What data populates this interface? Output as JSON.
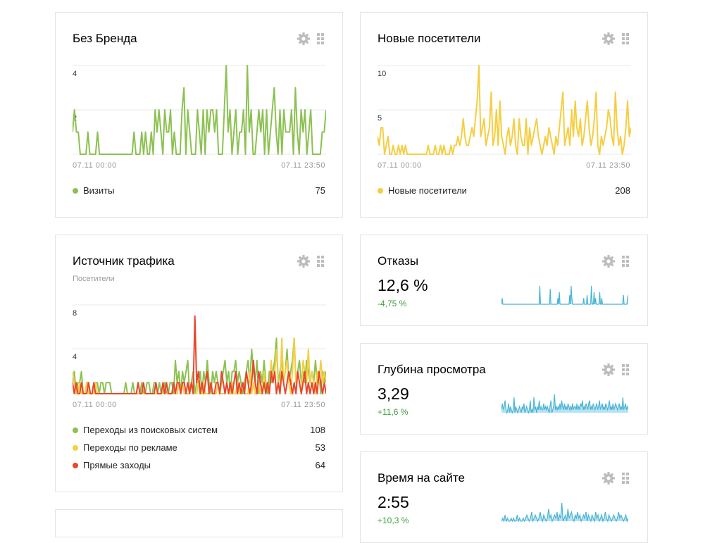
{
  "cards": {
    "brand": {
      "title": "Без Бренда",
      "y_ticks": [
        "4",
        "2"
      ],
      "time_start": "07.11 00:00",
      "time_end": "07.11 23:50",
      "legend": [
        {
          "label": "Визиты",
          "value": "75",
          "color": "#8cc152"
        }
      ],
      "series_color": "#8cc152",
      "series": [
        1,
        2,
        1,
        1,
        0,
        0,
        0,
        0,
        1,
        0,
        0,
        0,
        0,
        1,
        0,
        0,
        0,
        0,
        0,
        0,
        0,
        0,
        0,
        0,
        0,
        0,
        0,
        0,
        0,
        0,
        0,
        0,
        1,
        0,
        0,
        0,
        1,
        0,
        1,
        0,
        0,
        1,
        0,
        2,
        1,
        2,
        1,
        0,
        2,
        1,
        1,
        2,
        0,
        1,
        0,
        0,
        0,
        2,
        3,
        0,
        2,
        1,
        0,
        0,
        0,
        2,
        1,
        0,
        2,
        0,
        2,
        1,
        2,
        2,
        1,
        2,
        0,
        0,
        0,
        2,
        4,
        1,
        2,
        0,
        1,
        2,
        0,
        1,
        1,
        2,
        0,
        4,
        1,
        2,
        0,
        0,
        1,
        2,
        1,
        2,
        0,
        2,
        0,
        1,
        2,
        3,
        1,
        0,
        2,
        0,
        2,
        1,
        1,
        1,
        2,
        0,
        3,
        1,
        0,
        2,
        1,
        2,
        0,
        1,
        2,
        0,
        0,
        0,
        0,
        0,
        1,
        1,
        2
      ]
    },
    "new_visitors": {
      "title": "Новые посетители",
      "y_ticks": [
        "10",
        "5"
      ],
      "time_start": "07.11 00:00",
      "time_end": "07.11 23:50",
      "legend": [
        {
          "label": "Новые посетители",
          "value": "208",
          "color": "#f5ce42"
        }
      ],
      "series_color": "#f5ce42",
      "series": [
        2,
        1,
        3,
        3,
        0,
        1,
        2,
        0,
        0,
        1,
        0,
        0,
        1,
        0,
        1,
        0,
        1,
        0,
        0,
        0,
        0,
        0,
        0,
        0,
        0,
        0,
        0,
        0,
        0,
        1,
        0,
        0,
        0,
        1,
        0,
        0,
        1,
        0,
        1,
        0,
        0,
        0,
        1,
        0,
        1,
        1,
        2,
        1,
        2,
        4,
        2,
        1,
        1,
        2,
        3,
        2,
        4,
        6,
        10,
        2,
        3,
        4,
        1,
        2,
        3,
        7,
        1,
        2,
        5,
        1,
        6,
        2,
        1,
        0,
        2,
        3,
        1,
        2,
        4,
        1,
        0,
        4,
        2,
        1,
        1,
        4,
        0,
        3,
        1,
        2,
        3,
        4,
        2,
        1,
        0,
        1,
        2,
        1,
        3,
        2,
        1,
        0,
        2,
        1,
        3,
        5,
        7,
        1,
        2,
        3,
        1,
        5,
        2,
        6,
        3,
        2,
        4,
        1,
        2,
        4,
        6,
        3,
        1,
        2,
        4,
        7,
        1,
        0,
        2,
        1,
        2,
        3,
        5,
        4,
        2,
        1,
        7,
        3,
        1,
        2,
        0,
        1,
        3,
        6,
        2,
        3
      ]
    },
    "traffic": {
      "title": "Источник трафика",
      "subtitle": "Посетители",
      "y_ticks": [
        "8",
        "4"
      ],
      "time_start": "07.11 00:00",
      "time_end": "07.11 23:50",
      "legend": [
        {
          "label": "Переходы из поисковых систем",
          "value": "108",
          "color": "#8cc152"
        },
        {
          "label": "Переходы по рекламе",
          "value": "53",
          "color": "#f5ce42"
        },
        {
          "label": "Прямые заходы",
          "value": "64",
          "color": "#e9462b"
        }
      ],
      "series": [
        {
          "color": "#8cc152",
          "values": [
            1,
            2,
            0,
            1,
            1,
            2,
            0,
            0,
            1,
            1,
            0,
            0,
            0,
            1,
            1,
            0,
            1,
            1,
            0,
            1,
            1,
            1,
            0,
            0,
            0,
            0,
            0,
            0,
            0,
            0,
            1,
            0,
            0,
            0,
            1,
            0,
            0,
            1,
            0,
            1,
            0,
            0,
            1,
            1,
            0,
            0,
            1,
            1,
            0,
            1,
            0,
            0,
            1,
            0,
            0,
            1,
            1,
            0,
            3,
            1,
            2,
            0,
            2,
            1,
            2,
            3,
            0,
            1,
            2,
            0,
            1,
            1,
            2,
            0,
            2,
            1,
            3,
            1,
            0,
            2,
            1,
            2,
            1,
            0,
            1,
            2,
            3,
            1,
            2,
            0,
            2,
            2,
            3,
            1,
            2,
            1,
            0,
            1,
            2,
            3,
            1,
            4,
            2,
            1,
            3,
            0,
            2,
            1,
            3,
            1,
            0,
            2,
            1,
            2,
            3,
            5,
            1,
            2,
            3,
            1,
            2,
            4,
            1,
            2,
            3,
            5,
            1,
            2,
            3,
            1,
            2,
            1,
            3,
            2,
            1,
            2,
            1,
            3,
            1,
            2,
            0,
            2,
            1,
            2
          ]
        },
        {
          "color": "#f5ce42",
          "values": [
            2,
            1,
            0,
            0,
            1,
            0,
            0,
            0,
            1,
            0,
            0,
            0,
            0,
            1,
            0,
            0,
            0,
            0,
            0,
            0,
            0,
            0,
            0,
            0,
            0,
            0,
            0,
            0,
            0,
            0,
            0,
            0,
            0,
            0,
            0,
            0,
            0,
            0,
            0,
            0,
            0,
            0,
            0,
            0,
            0,
            0,
            0,
            0,
            0,
            0,
            0,
            0,
            0,
            0,
            0,
            0,
            0,
            1,
            0,
            0,
            1,
            0,
            1,
            0,
            0,
            0,
            0,
            1,
            0,
            0,
            0,
            1,
            0,
            0,
            1,
            0,
            0,
            0,
            1,
            0,
            0,
            0,
            1,
            0,
            0,
            0,
            0,
            1,
            0,
            0,
            1,
            0,
            0,
            1,
            0,
            0,
            1,
            0,
            0,
            0,
            2,
            0,
            1,
            0,
            0,
            1,
            0,
            0,
            2,
            0,
            1,
            0,
            3,
            1,
            2,
            4,
            1,
            0,
            5,
            1,
            2,
            3,
            1,
            0,
            2,
            5,
            1,
            2,
            1,
            0,
            3,
            2,
            1,
            4,
            1,
            2,
            1,
            0,
            2,
            1,
            3,
            1,
            2,
            1
          ]
        },
        {
          "color": "#e9462b",
          "values": [
            1,
            0,
            1,
            0,
            0,
            1,
            0,
            0,
            0,
            1,
            0,
            0,
            1,
            0,
            0,
            0,
            0,
            0,
            0,
            0,
            0,
            0,
            0,
            0,
            0,
            0,
            0,
            0,
            0,
            0,
            0,
            0,
            0,
            0,
            0,
            0,
            0,
            1,
            0,
            0,
            1,
            0,
            0,
            0,
            0,
            0,
            0,
            1,
            0,
            0,
            0,
            1,
            0,
            1,
            0,
            0,
            0,
            1,
            0,
            1,
            1,
            0,
            1,
            1,
            0,
            1,
            0,
            1,
            0,
            7,
            1,
            2,
            0,
            1,
            0,
            1,
            2,
            0,
            1,
            0,
            0,
            1,
            1,
            0,
            2,
            1,
            0,
            1,
            0,
            1,
            0,
            1,
            2,
            0,
            1,
            0,
            1,
            0,
            2,
            1,
            0,
            1,
            3,
            1,
            0,
            2,
            1,
            0,
            1,
            0,
            1,
            0,
            2,
            1,
            2,
            0,
            1,
            0,
            2,
            1,
            0,
            1,
            2,
            1,
            0,
            1,
            0,
            2,
            1,
            0,
            1,
            2,
            0,
            1,
            0,
            1,
            0,
            1,
            0,
            2,
            1,
            0,
            1,
            0
          ]
        }
      ]
    },
    "bounce": {
      "title": "Отказы",
      "value": "12,6 %",
      "change": "-4,75 %",
      "spark": [
        0,
        2,
        0,
        0,
        0,
        0,
        0,
        0,
        0,
        0,
        0,
        0,
        0,
        0,
        0,
        0,
        0,
        0,
        0,
        0,
        0,
        0,
        0,
        0,
        0,
        0,
        0,
        0,
        0,
        0,
        0,
        0,
        0,
        0,
        0,
        0,
        0,
        0,
        0,
        0,
        0,
        0,
        0,
        0,
        0,
        0,
        0,
        0,
        0,
        0,
        0,
        0,
        0,
        0,
        0,
        6,
        0,
        0,
        0,
        0,
        0,
        0,
        0,
        0,
        0,
        0,
        0,
        0,
        0,
        0,
        5,
        0,
        0,
        0,
        0,
        0,
        0,
        0,
        0,
        0,
        0,
        2,
        0,
        4,
        0,
        0,
        0,
        0,
        0,
        0,
        0,
        0,
        0,
        0,
        0,
        0,
        0,
        0,
        3,
        0,
        6,
        2,
        0,
        0,
        0,
        0,
        0,
        0,
        0,
        0,
        0,
        0,
        0,
        0,
        0,
        0,
        0,
        0,
        2,
        0,
        0,
        0,
        0,
        3,
        0,
        0,
        0,
        0,
        0,
        6,
        1,
        0,
        0,
        4,
        0,
        2,
        0,
        0,
        0,
        0,
        0,
        4,
        0,
        0,
        2,
        0,
        0,
        0,
        0,
        0,
        0,
        0,
        0,
        0,
        0,
        0,
        0,
        0,
        0,
        0,
        0,
        0,
        0,
        0,
        0,
        0,
        0,
        0,
        0,
        0,
        0,
        0,
        0,
        0,
        0,
        3,
        0,
        0,
        0,
        0,
        0,
        2,
        3
      ]
    },
    "depth": {
      "title": "Глубина просмотра",
      "value": "3,29",
      "change": "+11,6 %",
      "spark": [
        1,
        3,
        1,
        2,
        4,
        1,
        0,
        1,
        3,
        0,
        2,
        1,
        0,
        1,
        5,
        0,
        2,
        1,
        0,
        1,
        2,
        1,
        0,
        2,
        1,
        3,
        0,
        1,
        2,
        1,
        0,
        1,
        4,
        0,
        1,
        0,
        5,
        1,
        2,
        0,
        2,
        1,
        4,
        1,
        2,
        1,
        1,
        3,
        1,
        2,
        1,
        2,
        1,
        0,
        2,
        4,
        0,
        1,
        2,
        6,
        1,
        2,
        1,
        2,
        1,
        3,
        1,
        4,
        2,
        1,
        3,
        1,
        2,
        1,
        3,
        2,
        1,
        2,
        1,
        3,
        1,
        2,
        2,
        1,
        3,
        1,
        2,
        1,
        3,
        2,
        4,
        1,
        2,
        1,
        3,
        2,
        1,
        3,
        4,
        1,
        2,
        1,
        3,
        2,
        1,
        2,
        3,
        1,
        2,
        4,
        1,
        2,
        3,
        1,
        2,
        1,
        3,
        2,
        1,
        2,
        4,
        1,
        2,
        1,
        3,
        1,
        2,
        3,
        2,
        1,
        2,
        3,
        1,
        2,
        1,
        5,
        1,
        2,
        3,
        1,
        2,
        1
      ]
    },
    "time_on_site": {
      "title": "Время на сайте",
      "value": "2:55",
      "change": "+10,3 %",
      "spark": [
        0,
        1,
        0,
        2,
        0,
        1,
        0,
        0,
        1,
        0,
        1,
        0,
        0,
        2,
        0,
        1,
        0,
        0,
        1,
        0,
        1,
        2,
        1,
        0,
        1,
        3,
        0,
        1,
        2,
        1,
        0,
        1,
        3,
        1,
        0,
        2,
        1,
        0,
        1,
        4,
        1,
        2,
        0,
        1,
        2,
        1,
        3,
        0,
        2,
        1,
        6,
        0,
        1,
        2,
        0,
        4,
        1,
        2,
        3,
        1,
        0,
        2,
        1,
        3,
        1,
        2,
        0,
        1,
        2,
        1,
        3,
        0,
        2,
        1,
        0,
        2,
        1,
        0,
        3,
        1,
        2,
        0,
        1,
        2,
        0,
        1,
        3,
        1,
        0,
        2,
        1,
        0,
        1,
        2,
        1,
        0,
        1,
        3,
        1,
        2,
        1,
        0,
        1,
        2,
        0,
        1
      ]
    }
  }
}
